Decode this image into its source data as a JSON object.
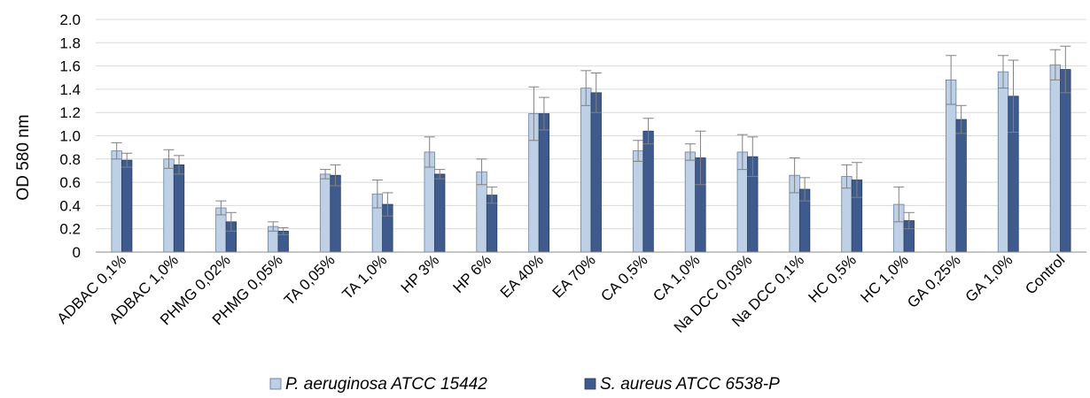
{
  "chart_data": {
    "type": "bar",
    "title": "",
    "xlabel": "",
    "ylabel": "OD 580 nm",
    "ylim": [
      0,
      2.0
    ],
    "yticks": [
      "0",
      "0.2",
      "0.4",
      "0.6",
      "0.8",
      "1.0",
      "1.2",
      "1.4",
      "1.6",
      "1.8",
      "2.0"
    ],
    "grid": true,
    "legend_position": "bottom",
    "categories": [
      "ADBAC 0,1%",
      "ADBAC 1,0%",
      "PHMG 0,02%",
      "PHMG 0,05%",
      "TA 0,05%",
      "TA 1,0%",
      "HP 3%",
      "HP 6%",
      "EA 40%",
      "EA 70%",
      "CA 0,5%",
      "CA 1,0%",
      "Na DCC 0,03%",
      "Na DCC 0,1%",
      "HC 0,5%",
      "HC 1,0%",
      "GA 0,25%",
      "GA 1,0%",
      "Control"
    ],
    "series": [
      {
        "name": "P. aeruginosa ATCC 15442",
        "color": "#BDD0E6",
        "values": [
          0.87,
          0.8,
          0.38,
          0.22,
          0.67,
          0.5,
          0.86,
          0.69,
          1.19,
          1.41,
          0.87,
          0.86,
          0.86,
          0.66,
          0.65,
          0.41,
          1.48,
          1.55,
          1.61
        ],
        "errors": [
          0.07,
          0.08,
          0.06,
          0.04,
          0.04,
          0.12,
          0.13,
          0.11,
          0.23,
          0.15,
          0.09,
          0.07,
          0.15,
          0.15,
          0.1,
          0.15,
          0.21,
          0.14,
          0.13
        ]
      },
      {
        "name": "S. aureus ATCC 6538-P",
        "color": "#3F5B8E",
        "values": [
          0.79,
          0.75,
          0.26,
          0.18,
          0.66,
          0.41,
          0.67,
          0.49,
          1.19,
          1.37,
          1.04,
          0.81,
          0.82,
          0.54,
          0.62,
          0.27,
          1.14,
          1.34,
          1.57
        ],
        "errors": [
          0.06,
          0.08,
          0.08,
          0.03,
          0.09,
          0.1,
          0.04,
          0.07,
          0.14,
          0.17,
          0.11,
          0.23,
          0.17,
          0.1,
          0.15,
          0.07,
          0.12,
          0.31,
          0.2
        ]
      }
    ]
  }
}
